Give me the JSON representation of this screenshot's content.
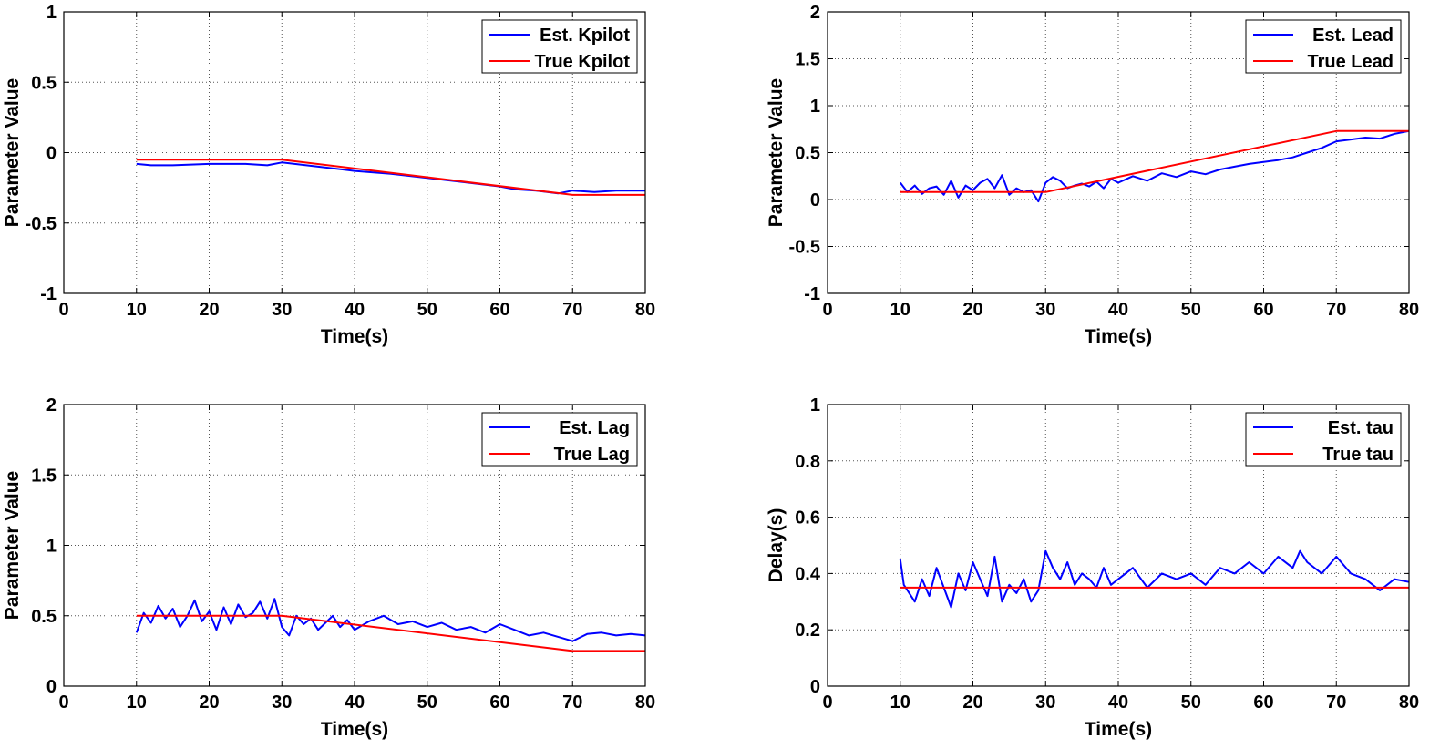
{
  "colors": {
    "estimate": "#0000ff",
    "truth": "#ff0000",
    "grid": "#555555",
    "axes": "#000000"
  },
  "chart_data": [
    {
      "type": "line",
      "xlabel": "Time(s)",
      "ylabel": "Parameter Value",
      "xlim": [
        0,
        80
      ],
      "ylim": [
        -1,
        1
      ],
      "xticks": [
        0,
        10,
        20,
        30,
        40,
        50,
        60,
        70,
        80
      ],
      "yticks": [
        -1,
        -0.5,
        0,
        0.5,
        1
      ],
      "ytick_labels": [
        "-1",
        "-0.5",
        "0",
        "0.5",
        "1"
      ],
      "grid": true,
      "legend": "top-right",
      "series": [
        {
          "name": "Est. Kpilot",
          "color": "#0000ff",
          "x": [
            10,
            12,
            15,
            20,
            25,
            28,
            30,
            35,
            40,
            45,
            50,
            55,
            60,
            62,
            65,
            68,
            70,
            73,
            76,
            80
          ],
          "y": [
            -0.08,
            -0.09,
            -0.09,
            -0.08,
            -0.08,
            -0.09,
            -0.07,
            -0.1,
            -0.13,
            -0.15,
            -0.18,
            -0.21,
            -0.24,
            -0.26,
            -0.27,
            -0.29,
            -0.27,
            -0.28,
            -0.27,
            -0.27
          ]
        },
        {
          "name": "True Kpilot",
          "color": "#ff0000",
          "x": [
            10,
            30,
            70,
            80
          ],
          "y": [
            -0.05,
            -0.05,
            -0.3,
            -0.3
          ]
        }
      ]
    },
    {
      "type": "line",
      "xlabel": "Time(s)",
      "ylabel": "Parameter Value",
      "xlim": [
        0,
        80
      ],
      "ylim": [
        -1,
        2
      ],
      "xticks": [
        0,
        10,
        20,
        30,
        40,
        50,
        60,
        70,
        80
      ],
      "yticks": [
        -1,
        -0.5,
        0,
        0.5,
        1,
        1.5,
        2
      ],
      "ytick_labels": [
        "-1",
        "-0.5",
        "0",
        "0.5",
        "1",
        "1.5",
        "2"
      ],
      "grid": true,
      "legend": "top-right",
      "series": [
        {
          "name": "Est. Lead",
          "color": "#0000ff",
          "x": [
            10,
            11,
            12,
            13,
            14,
            15,
            16,
            17,
            18,
            19,
            20,
            21,
            22,
            23,
            24,
            25,
            26,
            27,
            28,
            29,
            30,
            31,
            32,
            33,
            34,
            35,
            36,
            37,
            38,
            39,
            40,
            42,
            44,
            46,
            48,
            50,
            52,
            54,
            56,
            58,
            60,
            62,
            64,
            66,
            68,
            70,
            72,
            74,
            76,
            78,
            80
          ],
          "y": [
            0.18,
            0.08,
            0.15,
            0.06,
            0.12,
            0.14,
            0.05,
            0.2,
            0.02,
            0.15,
            0.1,
            0.18,
            0.22,
            0.12,
            0.26,
            0.05,
            0.12,
            0.08,
            0.1,
            -0.02,
            0.18,
            0.24,
            0.2,
            0.12,
            0.15,
            0.17,
            0.14,
            0.19,
            0.12,
            0.22,
            0.18,
            0.25,
            0.2,
            0.28,
            0.24,
            0.3,
            0.27,
            0.32,
            0.35,
            0.38,
            0.4,
            0.42,
            0.45,
            0.5,
            0.55,
            0.62,
            0.64,
            0.66,
            0.65,
            0.7,
            0.73
          ]
        },
        {
          "name": "True Lead",
          "color": "#ff0000",
          "x": [
            10,
            30,
            70,
            80
          ],
          "y": [
            0.08,
            0.08,
            0.73,
            0.73
          ]
        }
      ]
    },
    {
      "type": "line",
      "xlabel": "Time(s)",
      "ylabel": "Parameter Value",
      "xlim": [
        0,
        80
      ],
      "ylim": [
        0,
        2
      ],
      "xticks": [
        0,
        10,
        20,
        30,
        40,
        50,
        60,
        70,
        80
      ],
      "yticks": [
        0,
        0.5,
        1,
        1.5,
        2
      ],
      "ytick_labels": [
        "0",
        "0.5",
        "1",
        "1.5",
        "2"
      ],
      "grid": true,
      "legend": "top-right",
      "series": [
        {
          "name": "Est. Lag",
          "color": "#0000ff",
          "x": [
            10,
            11,
            12,
            13,
            14,
            15,
            16,
            17,
            18,
            19,
            20,
            21,
            22,
            23,
            24,
            25,
            26,
            27,
            28,
            29,
            30,
            31,
            32,
            33,
            34,
            35,
            36,
            37,
            38,
            39,
            40,
            42,
            44,
            46,
            48,
            50,
            52,
            54,
            56,
            58,
            60,
            62,
            64,
            66,
            68,
            70,
            72,
            74,
            76,
            78,
            80
          ],
          "y": [
            0.38,
            0.52,
            0.45,
            0.57,
            0.48,
            0.55,
            0.42,
            0.5,
            0.61,
            0.46,
            0.53,
            0.4,
            0.56,
            0.44,
            0.58,
            0.49,
            0.52,
            0.6,
            0.48,
            0.62,
            0.42,
            0.36,
            0.5,
            0.44,
            0.48,
            0.4,
            0.45,
            0.5,
            0.42,
            0.47,
            0.4,
            0.46,
            0.5,
            0.44,
            0.46,
            0.42,
            0.45,
            0.4,
            0.42,
            0.38,
            0.44,
            0.4,
            0.36,
            0.38,
            0.35,
            0.32,
            0.37,
            0.38,
            0.36,
            0.37,
            0.36
          ]
        },
        {
          "name": "True Lag",
          "color": "#ff0000",
          "x": [
            10,
            30,
            70,
            80
          ],
          "y": [
            0.5,
            0.5,
            0.25,
            0.25
          ]
        }
      ]
    },
    {
      "type": "line",
      "xlabel": "Time(s)",
      "ylabel": "Delay(s)",
      "xlim": [
        0,
        80
      ],
      "ylim": [
        0,
        1
      ],
      "xticks": [
        0,
        10,
        20,
        30,
        40,
        50,
        60,
        70,
        80
      ],
      "yticks": [
        0,
        0.2,
        0.4,
        0.6,
        0.8,
        1
      ],
      "ytick_labels": [
        "0",
        "0.2",
        "0.4",
        "0.6",
        "0.8",
        "1"
      ],
      "grid": true,
      "legend": "top-right",
      "series": [
        {
          "name": "Est. tau",
          "color": "#0000ff",
          "x": [
            10,
            10.5,
            11,
            12,
            13,
            14,
            15,
            16,
            17,
            18,
            19,
            20,
            21,
            22,
            23,
            24,
            25,
            26,
            27,
            28,
            29,
            30,
            31,
            32,
            33,
            34,
            35,
            36,
            37,
            38,
            39,
            40,
            42,
            44,
            46,
            48,
            50,
            52,
            54,
            56,
            58,
            60,
            62,
            64,
            65,
            66,
            68,
            70,
            72,
            74,
            76,
            78,
            80
          ],
          "y": [
            0.45,
            0.36,
            0.34,
            0.3,
            0.38,
            0.32,
            0.42,
            0.35,
            0.28,
            0.4,
            0.34,
            0.44,
            0.38,
            0.32,
            0.46,
            0.3,
            0.36,
            0.33,
            0.38,
            0.3,
            0.34,
            0.48,
            0.42,
            0.38,
            0.44,
            0.36,
            0.4,
            0.38,
            0.35,
            0.42,
            0.36,
            0.38,
            0.42,
            0.35,
            0.4,
            0.38,
            0.4,
            0.36,
            0.42,
            0.4,
            0.44,
            0.4,
            0.46,
            0.42,
            0.48,
            0.44,
            0.4,
            0.46,
            0.4,
            0.38,
            0.34,
            0.38,
            0.37
          ]
        },
        {
          "name": "True tau",
          "color": "#ff0000",
          "x": [
            10,
            80
          ],
          "y": [
            0.35,
            0.35
          ]
        }
      ]
    }
  ]
}
